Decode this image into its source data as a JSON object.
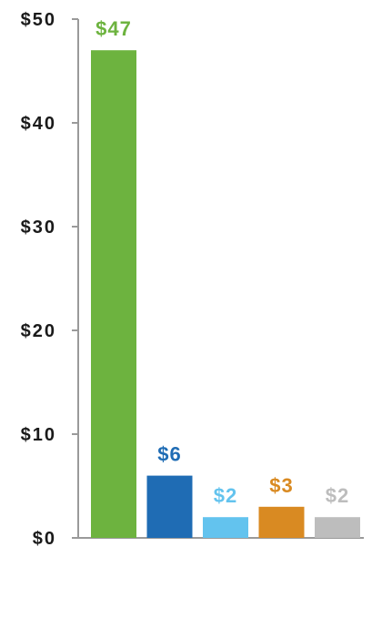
{
  "chart_data": {
    "type": "bar",
    "categories": [
      "",
      "",
      "",
      "",
      ""
    ],
    "values": [
      47,
      6,
      2,
      3,
      2
    ],
    "data_labels": [
      "$47",
      "$6",
      "$2",
      "$3",
      "$2"
    ],
    "bar_colors": [
      "#6db33f",
      "#1f6cb4",
      "#63c3ee",
      "#d98a22",
      "#bdbdbd"
    ],
    "label_colors": [
      "#6db33f",
      "#1f6cb4",
      "#63c3ee",
      "#d98a22",
      "#bdbdbd"
    ],
    "title": "",
    "xlabel": "",
    "ylabel": "",
    "ylim": [
      0,
      50
    ],
    "y_ticks": [
      0,
      10,
      20,
      30,
      40,
      50
    ],
    "y_tick_labels": [
      "$0",
      "$10",
      "$20",
      "$30",
      "$40",
      "$50"
    ],
    "grid": false,
    "legend": "none",
    "axis_color": "#9a9a9a"
  }
}
